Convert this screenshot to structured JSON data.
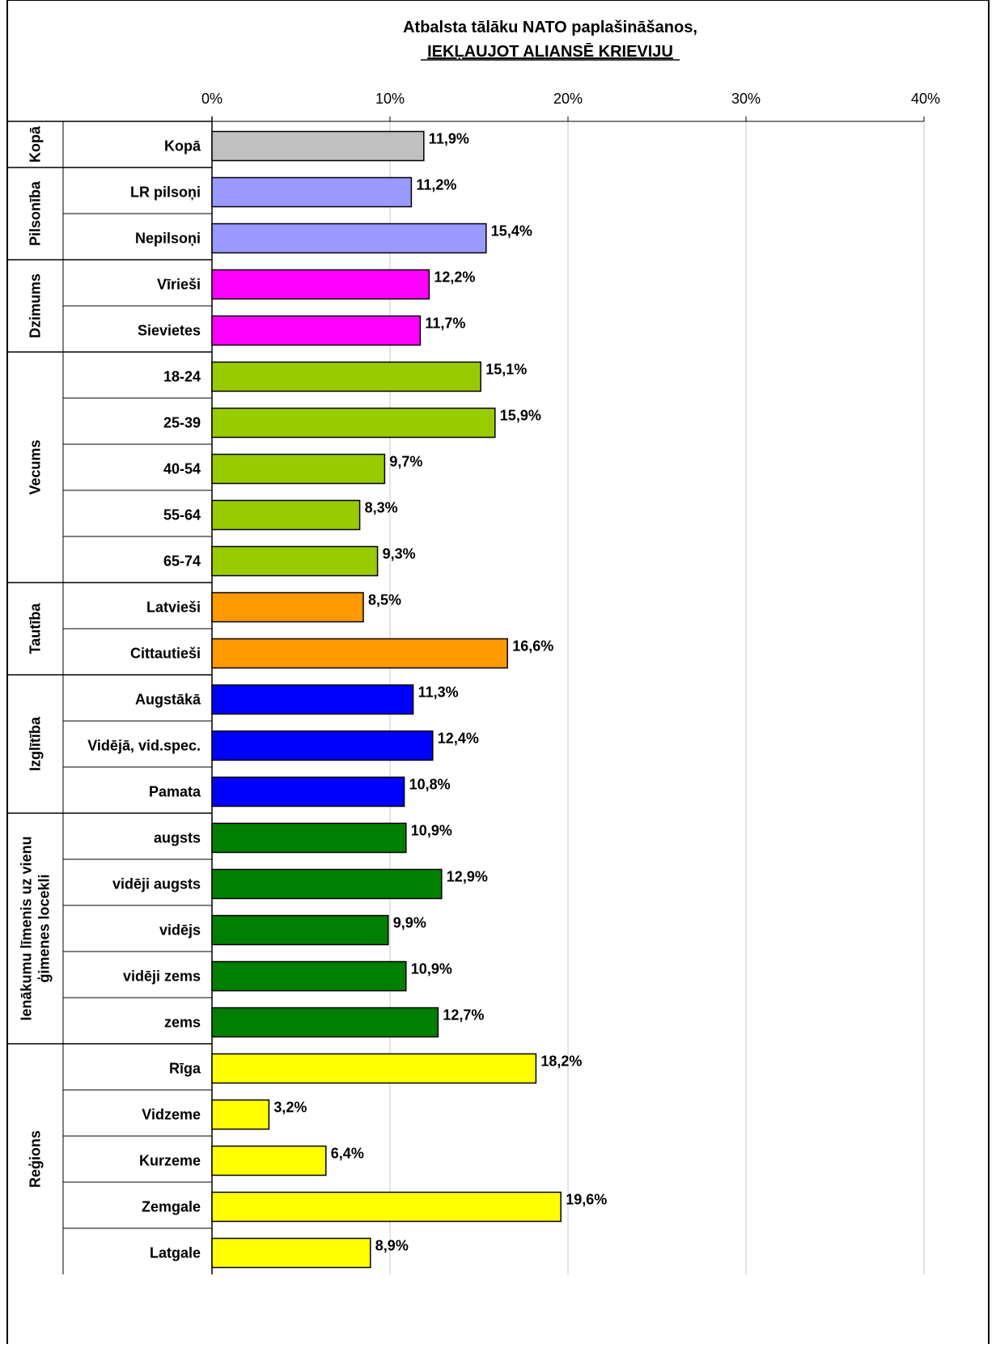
{
  "chart_data": {
    "type": "bar",
    "orientation": "horizontal",
    "title_line1": "Atbalsta tālāku NATO paplašināšanos,",
    "title_line2": "IEKĻAUJOT ALIANSĒ KRIEVIJU",
    "xlim": [
      0,
      40
    ],
    "xticks": [
      "0%",
      "10%",
      "20%",
      "30%",
      "40%"
    ],
    "grid": true,
    "groups": [
      {
        "name": "Kopā",
        "color": "#c0c0c0",
        "items": [
          {
            "label": "Kopā",
            "value": 11.9,
            "value_label": "11,9%"
          }
        ]
      },
      {
        "name": "Pilsonība",
        "color": "#9999ff",
        "items": [
          {
            "label": "LR pilsoņi",
            "value": 11.2,
            "value_label": "11,2%"
          },
          {
            "label": "Nepilsoņi",
            "value": 15.4,
            "value_label": "15,4%"
          }
        ]
      },
      {
        "name": "Dzimums",
        "color": "#ff00ff",
        "items": [
          {
            "label": "Vīrieši",
            "value": 12.2,
            "value_label": "12,2%"
          },
          {
            "label": "Sievietes",
            "value": 11.7,
            "value_label": "11,7%"
          }
        ]
      },
      {
        "name": "Vecums",
        "color": "#99cc00",
        "items": [
          {
            "label": "18-24",
            "value": 15.1,
            "value_label": "15,1%"
          },
          {
            "label": "25-39",
            "value": 15.9,
            "value_label": "15,9%"
          },
          {
            "label": "40-54",
            "value": 9.7,
            "value_label": "9,7%"
          },
          {
            "label": "55-64",
            "value": 8.3,
            "value_label": "8,3%"
          },
          {
            "label": "65-74",
            "value": 9.3,
            "value_label": "9,3%"
          }
        ]
      },
      {
        "name": "Tautība",
        "color": "#ff9900",
        "items": [
          {
            "label": "Latvieši",
            "value": 8.5,
            "value_label": "8,5%"
          },
          {
            "label": "Cittautieši",
            "value": 16.6,
            "value_label": "16,6%"
          }
        ]
      },
      {
        "name": "Izglītība",
        "color": "#0000ff",
        "items": [
          {
            "label": "Augstākā",
            "value": 11.3,
            "value_label": "11,3%"
          },
          {
            "label": "Vidējā, vid.spec.",
            "value": 12.4,
            "value_label": "12,4%"
          },
          {
            "label": "Pamata",
            "value": 10.8,
            "value_label": "10,8%"
          }
        ]
      },
      {
        "name": "Ienākumu līmenis uz vienu ģimenes locekli",
        "name_lines": [
          "Ienākumu līmenis uz vienu",
          "ģimenes locekli"
        ],
        "color": "#008000",
        "items": [
          {
            "label": "augsts",
            "value": 10.9,
            "value_label": "10,9%"
          },
          {
            "label": "vidēji augsts",
            "value": 12.9,
            "value_label": "12,9%"
          },
          {
            "label": "vidējs",
            "value": 9.9,
            "value_label": "9,9%"
          },
          {
            "label": "vidēji zems",
            "value": 10.9,
            "value_label": "10,9%"
          },
          {
            "label": "zems",
            "value": 12.7,
            "value_label": "12,7%"
          }
        ]
      },
      {
        "name": "Reģions",
        "color": "#ffff00",
        "items": [
          {
            "label": "Rīga",
            "value": 18.2,
            "value_label": "18,2%"
          },
          {
            "label": "Vidzeme",
            "value": 3.2,
            "value_label": "3,2%"
          },
          {
            "label": "Kurzeme",
            "value": 6.4,
            "value_label": "6,4%"
          },
          {
            "label": "Zemgale",
            "value": 19.6,
            "value_label": "19,6%"
          },
          {
            "label": "Latgale",
            "value": 8.9,
            "value_label": "8,9%"
          }
        ]
      }
    ]
  }
}
